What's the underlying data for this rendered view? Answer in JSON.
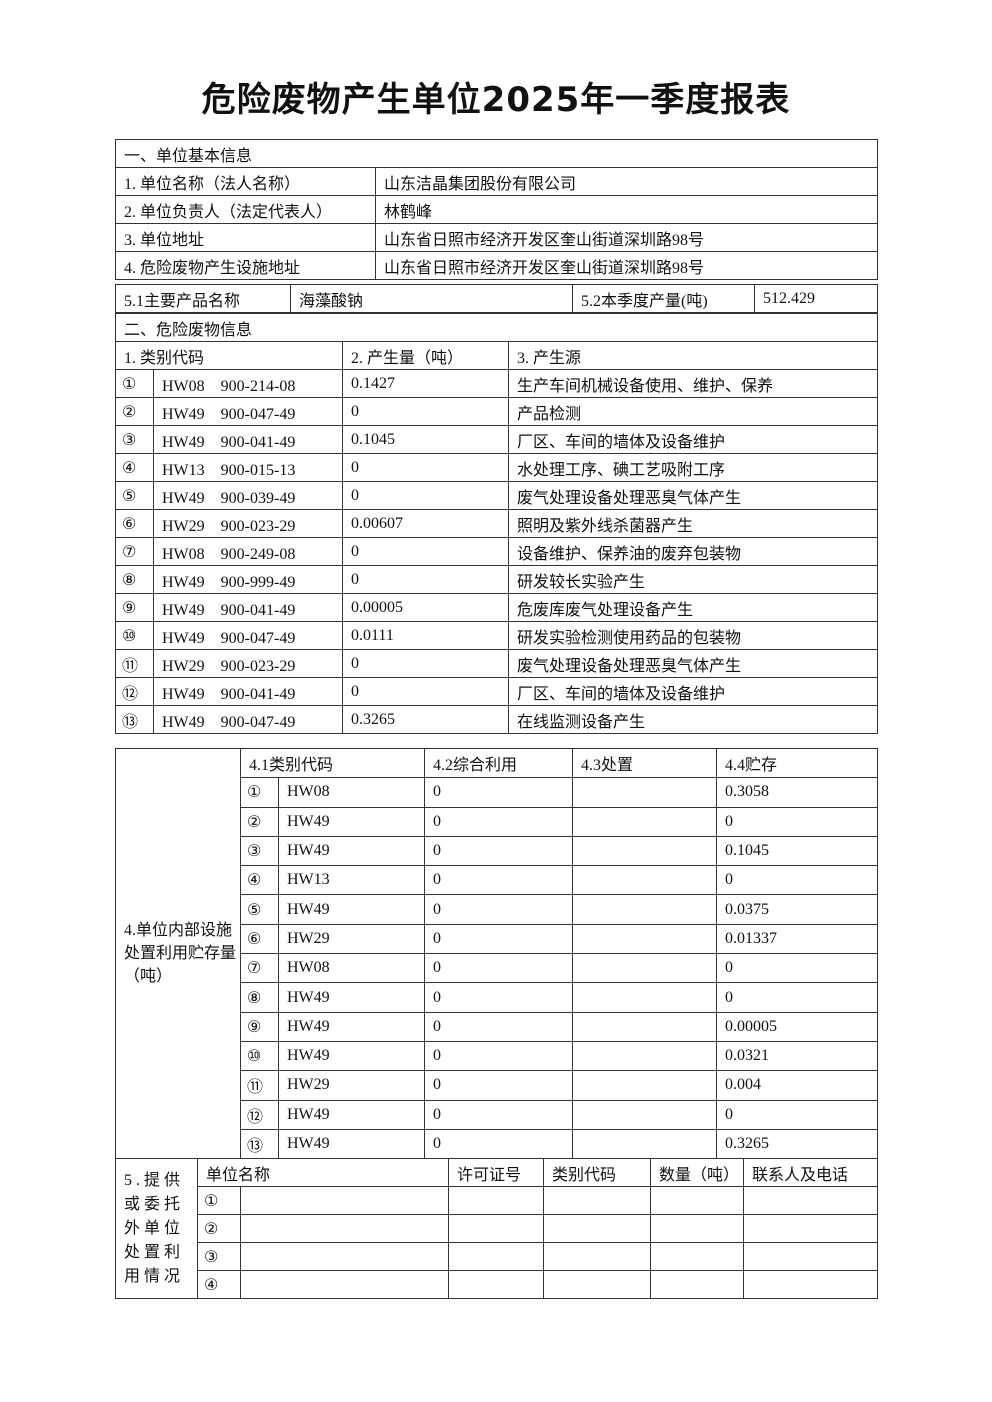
{
  "title": "危险废物产生单位2025年一季度报表",
  "basic": {
    "section": "一、单位基本信息",
    "rows": [
      {
        "label": "1. 单位名称（法人名称）",
        "value": "山东洁晶集团股份有限公司"
      },
      {
        "label": "2. 单位负责人（法定代表人）",
        "value": "林鹤峰"
      },
      {
        "label": "3. 单位地址",
        "value": "山东省日照市经济开发区奎山街道深圳路98号"
      },
      {
        "label": "4. 危险废物产生设施地址",
        "value": "山东省日照市经济开发区奎山街道深圳路98号"
      }
    ],
    "product_label": "5.1主要产品名称",
    "product": "海藻酸钠",
    "output_label": "5.2本季度产量(吨)",
    "output": "512.429"
  },
  "waste": {
    "section": "二、危险废物信息",
    "headers": [
      "1. 类别代码",
      "2. 产生量（吨）",
      "3. 产生源"
    ],
    "rows": [
      {
        "no": "①",
        "code": "HW08　900-214-08",
        "amount": "0.1427",
        "source": "生产车间机械设备使用、维护、保养"
      },
      {
        "no": "②",
        "code": "HW49　900-047-49",
        "amount": "0",
        "source": "产品检测"
      },
      {
        "no": "③",
        "code": "HW49　900-041-49",
        "amount": "0.1045",
        "source": "厂区、车间的墙体及设备维护"
      },
      {
        "no": "④",
        "code": "HW13　900-015-13",
        "amount": "0",
        "source": "水处理工序、碘工艺吸附工序"
      },
      {
        "no": "⑤",
        "code": "HW49　900-039-49",
        "amount": "0",
        "source": "废气处理设备处理恶臭气体产生"
      },
      {
        "no": "⑥",
        "code": "HW29　900-023-29",
        "amount": "0.00607",
        "source": "照明及紫外线杀菌器产生"
      },
      {
        "no": "⑦",
        "code": "HW08　900-249-08",
        "amount": "0",
        "source": "设备维护、保养油的废弃包装物"
      },
      {
        "no": "⑧",
        "code": "HW49　900-999-49",
        "amount": "0",
        "source": "研发较长实验产生"
      },
      {
        "no": "⑨",
        "code": "HW49　900-041-49",
        "amount": "0.00005",
        "source": "危废库废气处理设备产生"
      },
      {
        "no": "⑩",
        "code": "HW49　900-047-49",
        "amount": "0.0111",
        "source": "研发实验检测使用药品的包装物"
      },
      {
        "no": "⑪",
        "code": "HW29　900-023-29",
        "amount": "0",
        "source": "废气处理设备处理恶臭气体产生"
      },
      {
        "no": "⑫",
        "code": "HW49　900-041-49",
        "amount": "0",
        "source": "厂区、车间的墙体及设备维护"
      },
      {
        "no": "⑬",
        "code": "HW49　900-047-49",
        "amount": "0.3265",
        "source": "在线监测设备产生"
      }
    ]
  },
  "internal": {
    "label": "4.单位内部设施处置利用贮存量（吨）",
    "headers": [
      "4.1类别代码",
      "4.2综合利用",
      "4.3处置",
      "4.4贮存"
    ],
    "rows": [
      {
        "no": "①",
        "code": "HW08",
        "use": "0",
        "disposal": "",
        "storage": "0.3058"
      },
      {
        "no": "②",
        "code": "HW49",
        "use": "0",
        "disposal": "",
        "storage": "0"
      },
      {
        "no": "③",
        "code": "HW49",
        "use": "0",
        "disposal": "",
        "storage": "0.1045"
      },
      {
        "no": "④",
        "code": "HW13",
        "use": "0",
        "disposal": "",
        "storage": "0"
      },
      {
        "no": "⑤",
        "code": "HW49",
        "use": "0",
        "disposal": "",
        "storage": "0.0375"
      },
      {
        "no": "⑥",
        "code": "HW29",
        "use": "0",
        "disposal": "",
        "storage": "0.01337"
      },
      {
        "no": "⑦",
        "code": "HW08",
        "use": "0",
        "disposal": "",
        "storage": "0"
      },
      {
        "no": "⑧",
        "code": "HW49",
        "use": "0",
        "disposal": "",
        "storage": "0"
      },
      {
        "no": "⑨",
        "code": "HW49",
        "use": "0",
        "disposal": "",
        "storage": "0.00005"
      },
      {
        "no": "⑩",
        "code": "HW49",
        "use": "0",
        "disposal": "",
        "storage": "0.0321"
      },
      {
        "no": "⑪",
        "code": "HW29",
        "use": "0",
        "disposal": "",
        "storage": "0.004"
      },
      {
        "no": "⑫",
        "code": "HW49",
        "use": "0",
        "disposal": "",
        "storage": "0"
      },
      {
        "no": "⑬",
        "code": "HW49",
        "use": "0",
        "disposal": "",
        "storage": "0.3265"
      }
    ]
  },
  "external": {
    "label": "5.提供或委托外单位处置利用情况",
    "headers": [
      "单位名称",
      "许可证号",
      "类别代码",
      "数量（吨）",
      "联系人及电话"
    ],
    "rows": [
      {
        "no": "①"
      },
      {
        "no": "②"
      },
      {
        "no": "③"
      },
      {
        "no": "④"
      }
    ]
  }
}
